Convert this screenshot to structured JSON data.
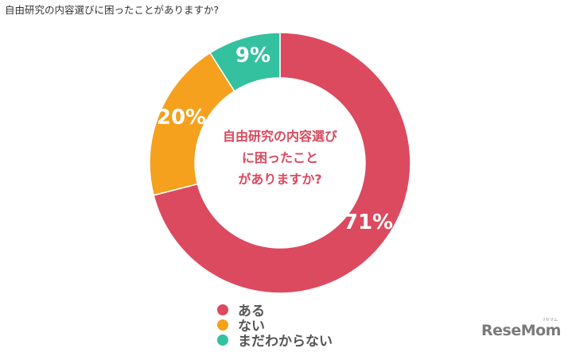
{
  "page": {
    "title": "自由研究の内容選びに困ったことがありますか?"
  },
  "chart_data": {
    "type": "pie",
    "variant": "donut",
    "title": "自由研究の内容選びに困ったことがありますか?",
    "center_label": [
      "自由研究の内容選び",
      "に困ったこと",
      "がありますか?"
    ],
    "categories": [
      "ある",
      "ない",
      "まだわからない"
    ],
    "values": [
      71,
      20,
      9
    ],
    "value_labels": [
      "71%",
      "20%",
      "9%"
    ],
    "colors": [
      "#dc4a5f",
      "#f5a11d",
      "#33c1a0"
    ],
    "legend_position": "bottom",
    "unit": "%"
  },
  "legend": {
    "items": [
      {
        "label": "ある",
        "color": "#dc4a5f"
      },
      {
        "label": "ない",
        "color": "#f5a11d"
      },
      {
        "label": "まだわからない",
        "color": "#33c1a0"
      }
    ]
  },
  "watermark": {
    "text": "ReseMom",
    "subtext": "リセマム"
  }
}
